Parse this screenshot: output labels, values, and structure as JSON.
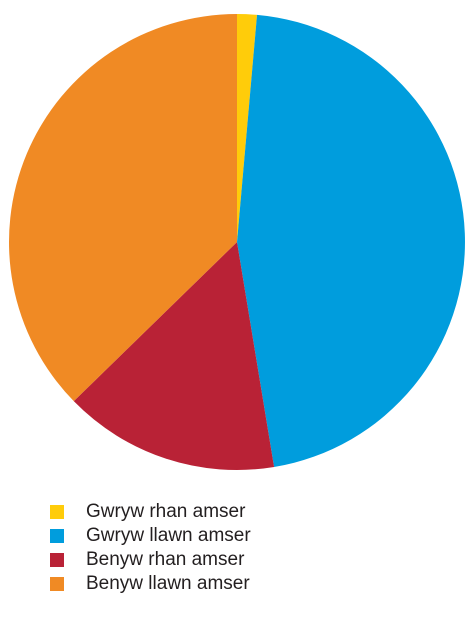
{
  "chart_data": {
    "type": "pie",
    "title": "",
    "start_angle_deg": 0,
    "direction": "clockwise",
    "legend_placement": "bottom-left",
    "slices": [
      {
        "label": "Gwryw rhan amser",
        "value": 1.4,
        "color": "#ffcc0a"
      },
      {
        "label": "Gwryw llawn amser",
        "value": 46.0,
        "color": "#009ddd"
      },
      {
        "label": "Benyw rhan amser",
        "value": 15.3,
        "color": "#b92236"
      },
      {
        "label": "Benyw llawn amser",
        "value": 37.3,
        "color": "#f08a24"
      }
    ]
  }
}
